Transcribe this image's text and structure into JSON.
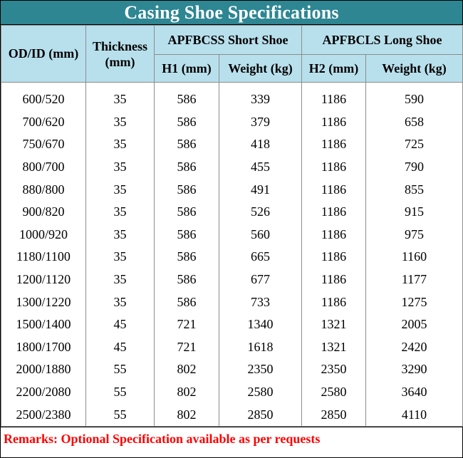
{
  "title": "Casing Shoe Specifications",
  "headers": {
    "od_id": "OD/ID (mm)",
    "thickness": "Thickness (mm)",
    "short_group": "APFBCSS Short Shoe",
    "long_group": "APFBCLS Long Shoe",
    "h1": "H1 (mm)",
    "weight_short": "Weight (kg)",
    "h2": "H2 (mm)",
    "weight_long": "Weight (kg)"
  },
  "colors": {
    "title_bg": "#2e8693",
    "header_bg": "#b8e0ec",
    "remarks_text": "#ff0000"
  },
  "rows": [
    [
      "600/520",
      "35",
      "586",
      "339",
      "1186",
      "590"
    ],
    [
      "700/620",
      "35",
      "586",
      "379",
      "1186",
      "658"
    ],
    [
      "750/670",
      "35",
      "586",
      "418",
      "1186",
      "725"
    ],
    [
      "800/700",
      "35",
      "586",
      "455",
      "1186",
      "790"
    ],
    [
      "880/800",
      "35",
      "586",
      "491",
      "1186",
      "855"
    ],
    [
      "900/820",
      "35",
      "586",
      "526",
      "1186",
      "915"
    ],
    [
      "1000/920",
      "35",
      "586",
      "560",
      "1186",
      "975"
    ],
    [
      "1180/1100",
      "35",
      "586",
      "665",
      "1186",
      "1160"
    ],
    [
      "1200/1120",
      "35",
      "586",
      "677",
      "1186",
      "1177"
    ],
    [
      "1300/1220",
      "35",
      "586",
      "733",
      "1186",
      "1275"
    ],
    [
      "1500/1400",
      "45",
      "721",
      "1340",
      "1321",
      "2005"
    ],
    [
      "1800/1700",
      "45",
      "721",
      "1618",
      "1321",
      "2420"
    ],
    [
      "2000/1880",
      "55",
      "802",
      "2350",
      "2350",
      "3290"
    ],
    [
      "2200/2080",
      "55",
      "802",
      "2580",
      "2580",
      "3640"
    ],
    [
      "2500/2380",
      "55",
      "802",
      "2850",
      "2850",
      "4110"
    ]
  ],
  "remarks": "Remarks: Optional Specification available as per requests"
}
